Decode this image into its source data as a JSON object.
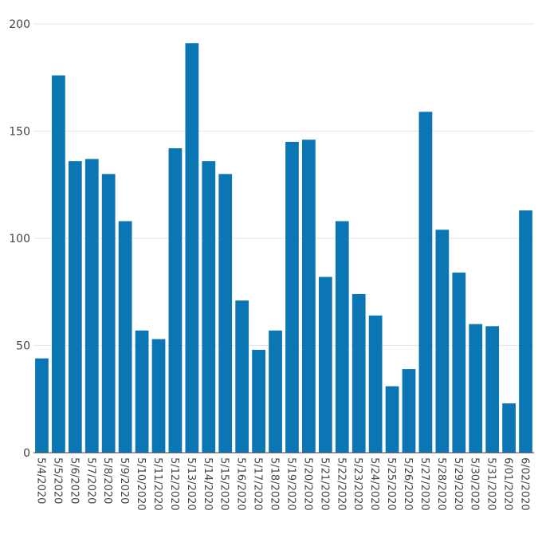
{
  "chart_data": {
    "type": "bar",
    "title": "",
    "xlabel": "",
    "ylabel": "",
    "ylim": [
      0,
      200
    ],
    "yticks": [
      0,
      50,
      100,
      150,
      200
    ],
    "grid": true,
    "bar_color": "#0a77b4",
    "categories": [
      "5/4/2020",
      "5/5/2020",
      "5/6/2020",
      "5/7/2020",
      "5/8/2020",
      "5/9/2020",
      "5/10/2020",
      "5/11/2020",
      "5/12/2020",
      "5/13/2020",
      "5/14/2020",
      "5/15/2020",
      "5/16/2020",
      "5/17/2020",
      "5/18/2020",
      "5/19/2020",
      "5/20/2020",
      "5/21/2020",
      "5/22/2020",
      "5/23/2020",
      "5/24/2020",
      "5/25/2020",
      "5/26/2020",
      "5/27/2020",
      "5/28/2020",
      "5/29/2020",
      "5/30/2020",
      "5/31/2020",
      "6/01/2020",
      "6/02/2020"
    ],
    "values": [
      44,
      176,
      136,
      137,
      130,
      108,
      57,
      53,
      142,
      191,
      136,
      130,
      71,
      48,
      57,
      145,
      146,
      82,
      108,
      74,
      64,
      31,
      39,
      159,
      104,
      84,
      60,
      59,
      23,
      113
    ]
  }
}
